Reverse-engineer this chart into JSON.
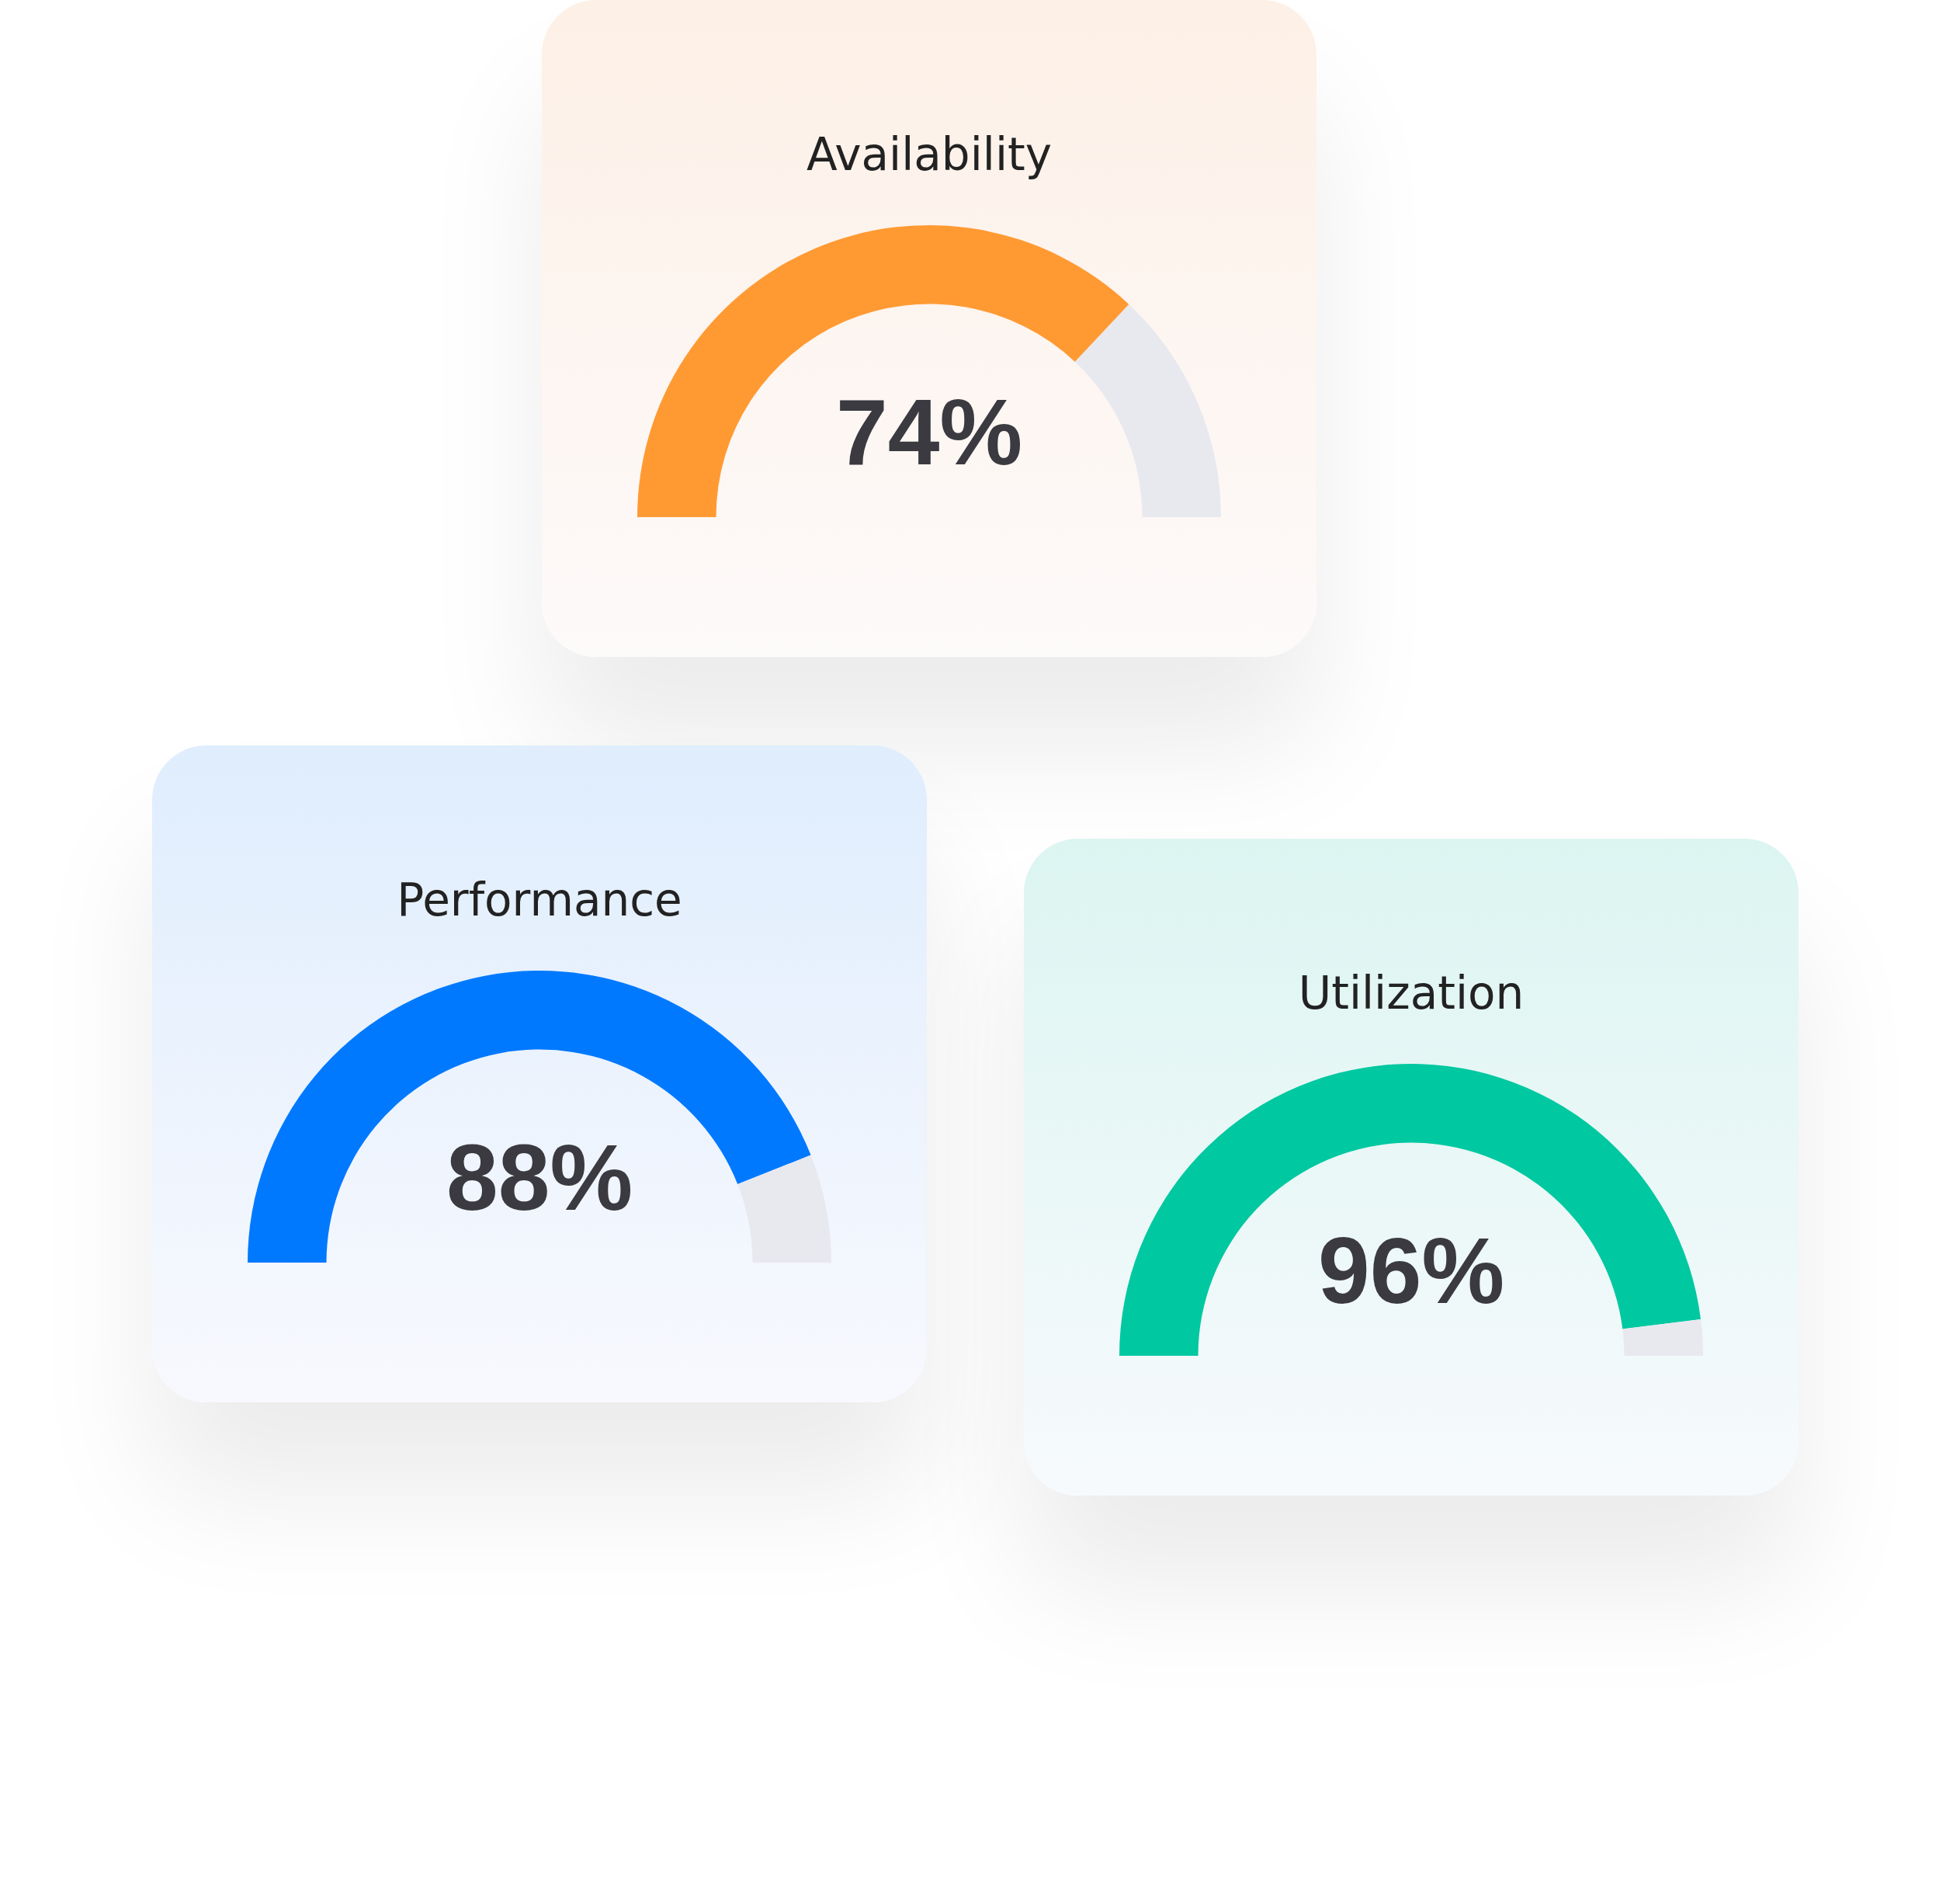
{
  "chart_data": [
    {
      "type": "donut",
      "title": "Availability",
      "categories": [
        null,
        null
      ],
      "values": [
        74,
        26
      ],
      "colors": [
        "#ff9a33",
        "#e8e9ef"
      ],
      "value_labels": [
        "74%",
        null
      ]
    },
    {
      "type": "donut",
      "title": "Performance",
      "categories": [
        null,
        null
      ],
      "values": [
        88,
        12
      ],
      "colors": [
        "#0079ff",
        "#e8e9ef"
      ],
      "value_labels": [
        "88%",
        null
      ]
    },
    {
      "type": "donut",
      "title": "Utilization",
      "categories": [
        null,
        null
      ],
      "values": [
        96,
        4
      ],
      "colors": [
        "#00c8a0",
        "#e8e9ef"
      ],
      "value_labels": [
        "96%",
        null
      ]
    }
  ]
}
